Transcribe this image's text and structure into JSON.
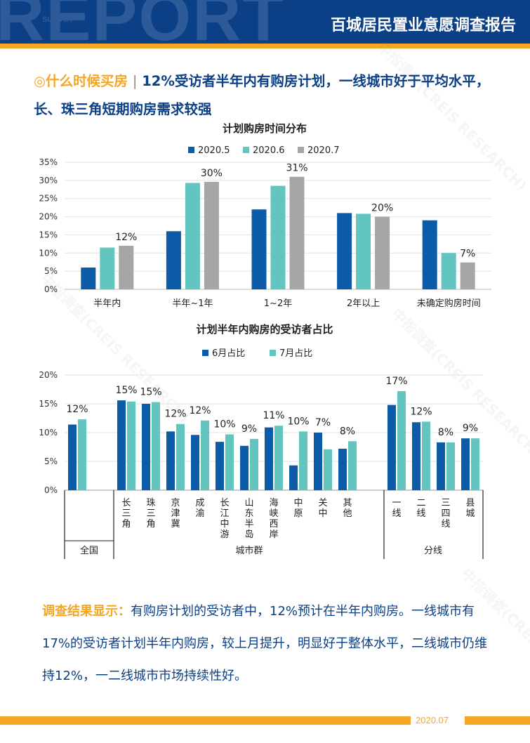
{
  "header": {
    "bg_text": "REPORT",
    "bg_subtext": "SURVEY",
    "title": "百城居民置业意愿调查报告",
    "brand_color": "#0b3f86",
    "accent_color": "#f5a623"
  },
  "headline": {
    "topic": "◎什么时候买房",
    "separator": "|",
    "text": "12%受访者半年内有购房计划，一线城市好于平均水平，长、珠三角短期购房需求较强"
  },
  "chart_data": [
    {
      "type": "bar",
      "title": "计划购房时间分布",
      "categories": [
        "半年内",
        "半年~1年",
        "1~2年",
        "2年以上",
        "未确定购房时间"
      ],
      "series": [
        {
          "name": "2020.5",
          "color": "#0b5ba8",
          "values": [
            6,
            16,
            22,
            21,
            19
          ]
        },
        {
          "name": "2020.6",
          "color": "#63c5c0",
          "values": [
            11.5,
            29.3,
            28.5,
            20.8,
            10
          ]
        },
        {
          "name": "2020.7",
          "color": "#a6a6a6",
          "values": [
            12,
            29.6,
            31,
            20,
            7.4
          ]
        }
      ],
      "data_labels": [
        {
          "category_index": 0,
          "series_index": 2,
          "text": "12%"
        },
        {
          "category_index": 1,
          "series_index": 2,
          "text": "30%"
        },
        {
          "category_index": 2,
          "series_index": 2,
          "text": "31%"
        },
        {
          "category_index": 3,
          "series_index": 2,
          "text": "20%"
        },
        {
          "category_index": 4,
          "series_index": 2,
          "text": "7%"
        }
      ],
      "yticks": [
        "0%",
        "5%",
        "10%",
        "15%",
        "20%",
        "25%",
        "30%",
        "35%"
      ],
      "ylim": [
        0,
        35
      ],
      "legend_position": "top-center"
    },
    {
      "type": "bar",
      "title": "计划半年内购房的受访者占比",
      "categories": [
        "全国",
        "长三角",
        "珠三角",
        "京津冀",
        "成渝",
        "长江中游",
        "山东半岛",
        "海峡西岸",
        "中原",
        "关中",
        "其他",
        "一线",
        "二线",
        "三四线",
        "县城"
      ],
      "series": [
        {
          "name": "6月占比",
          "color": "#0b5ba8",
          "values": [
            11.4,
            15.6,
            15,
            10.2,
            9.6,
            8.4,
            7.7,
            10.9,
            4.3,
            10,
            7.2,
            14.8,
            11.8,
            8.3,
            9
          ]
        },
        {
          "name": "7月占比",
          "color": "#63c5c0",
          "values": [
            12.3,
            15.4,
            15.3,
            11.5,
            12.1,
            9.7,
            8.9,
            11.2,
            10.2,
            7.1,
            8.5,
            17.2,
            11.9,
            8.3,
            9
          ]
        }
      ],
      "data_labels": [
        "12%",
        "15%",
        "15%",
        "12%",
        "12%",
        "10%",
        "9%",
        "11%",
        "10%",
        "7%",
        "8%",
        "17%",
        "12%",
        "8%",
        "9%"
      ],
      "group_labels": [
        "全国",
        "城市群",
        "分线"
      ],
      "yticks": [
        "0%",
        "5%",
        "10%",
        "15%",
        "20%"
      ],
      "ylim": [
        0,
        20
      ],
      "legend_position": "top-center"
    }
  ],
  "summary": {
    "lead": "调查结果显示：",
    "text": "有购房计划的受访者中，12%预计在半年内购房。一线城市有17%的受访者计划半年内购房，较上月提升，明显好于整体水平，二线城市仍维持12%，一二线城市市场持续性好。"
  },
  "watermark": "中指调查(CREIS RESEARCH)",
  "footer": {
    "date": "2020.07"
  }
}
